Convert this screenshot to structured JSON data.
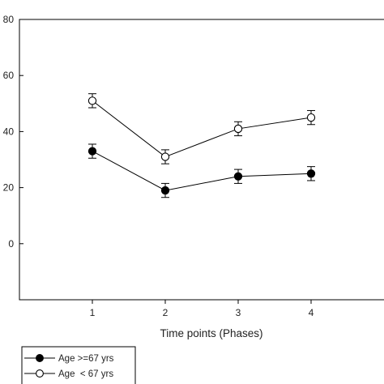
{
  "chart_data": {
    "type": "line",
    "title": "",
    "xlabel": "Time  points (Phases)",
    "ylabel": "",
    "x": [
      1,
      2,
      3,
      4
    ],
    "x_tick_labels": [
      "1",
      "2",
      "3",
      "4"
    ],
    "xlim": [
      0,
      5
    ],
    "ylim": [
      -20,
      80
    ],
    "y_ticks": [
      0,
      20,
      40,
      60,
      80
    ],
    "y_tick_labels": [
      "0",
      "20",
      "40",
      "60",
      "80"
    ],
    "grid": false,
    "legend_position": "bottom-left, outside plot",
    "series": [
      {
        "name": "Age >=67 yrs",
        "marker": "filled-circle",
        "color": "#000000",
        "values": [
          33,
          19,
          24,
          25
        ],
        "error": [
          2.5,
          2.5,
          2.5,
          2.5
        ]
      },
      {
        "name": "Age  < 67 yrs",
        "marker": "open-circle",
        "color": "#000000",
        "values": [
          51,
          31,
          41,
          45
        ],
        "error": [
          2.5,
          2.5,
          2.5,
          2.5
        ]
      }
    ]
  }
}
